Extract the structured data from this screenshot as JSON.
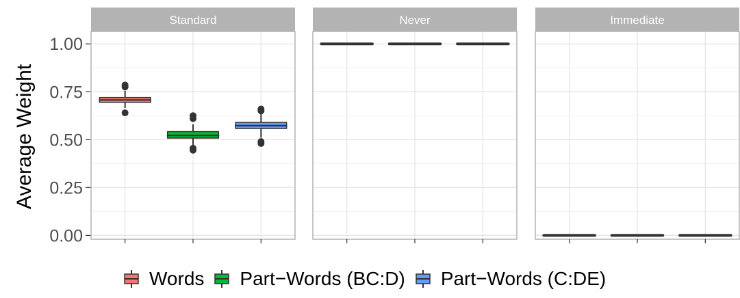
{
  "chart_data": {
    "type": "boxplot",
    "ylabel": "Average Weight",
    "ylim": [
      -0.02,
      1.065
    ],
    "y_ticks": [
      "0.00",
      "0.25",
      "0.50",
      "0.75",
      "1.00"
    ],
    "y_tick_values": [
      0,
      0.25,
      0.5,
      0.75,
      1.0
    ],
    "grid": true,
    "legend_position": "bottom",
    "series": [
      {
        "name": "Words",
        "color": "#F8766D"
      },
      {
        "name": "Part−Words (BC:D)",
        "color": "#00BA38"
      },
      {
        "name": "Part−Words (C:DE)",
        "color": "#619CFF"
      }
    ],
    "panels": [
      {
        "title": "Standard",
        "boxes": [
          {
            "series": "Words",
            "min": 0.665,
            "q1": 0.695,
            "median": 0.707,
            "q3": 0.72,
            "max": 0.755,
            "outliers": [
              0.64,
              0.775,
              0.785
            ]
          },
          {
            "series": "Part−Words (BC:D)",
            "min": 0.47,
            "q1": 0.508,
            "median": 0.522,
            "q3": 0.542,
            "max": 0.58,
            "outliers": [
              0.445,
              0.455,
              0.61,
              0.625
            ]
          },
          {
            "series": "Part−Words (C:DE)",
            "min": 0.51,
            "q1": 0.558,
            "median": 0.573,
            "q3": 0.59,
            "max": 0.64,
            "outliers": [
              0.48,
              0.49,
              0.65,
              0.66
            ]
          }
        ]
      },
      {
        "title": "Never",
        "boxes": [
          {
            "series": "Words",
            "min": 1.0,
            "q1": 1.0,
            "median": 1.0,
            "q3": 1.0,
            "max": 1.0,
            "outliers": []
          },
          {
            "series": "Part−Words (BC:D)",
            "min": 1.0,
            "q1": 1.0,
            "median": 1.0,
            "q3": 1.0,
            "max": 1.0,
            "outliers": []
          },
          {
            "series": "Part−Words (C:DE)",
            "min": 1.0,
            "q1": 1.0,
            "median": 1.0,
            "q3": 1.0,
            "max": 1.0,
            "outliers": []
          }
        ]
      },
      {
        "title": "Immediate",
        "boxes": [
          {
            "series": "Words",
            "min": 0.0,
            "q1": 0.0,
            "median": 0.0,
            "q3": 0.0,
            "max": 0.0,
            "outliers": []
          },
          {
            "series": "Part−Words (BC:D)",
            "min": 0.0,
            "q1": 0.0,
            "median": 0.0,
            "q3": 0.0,
            "max": 0.0,
            "outliers": []
          },
          {
            "series": "Part−Words (C:DE)",
            "min": 0.0,
            "q1": 0.0,
            "median": 0.0,
            "q3": 0.0,
            "max": 0.0,
            "outliers": []
          }
        ]
      }
    ]
  }
}
